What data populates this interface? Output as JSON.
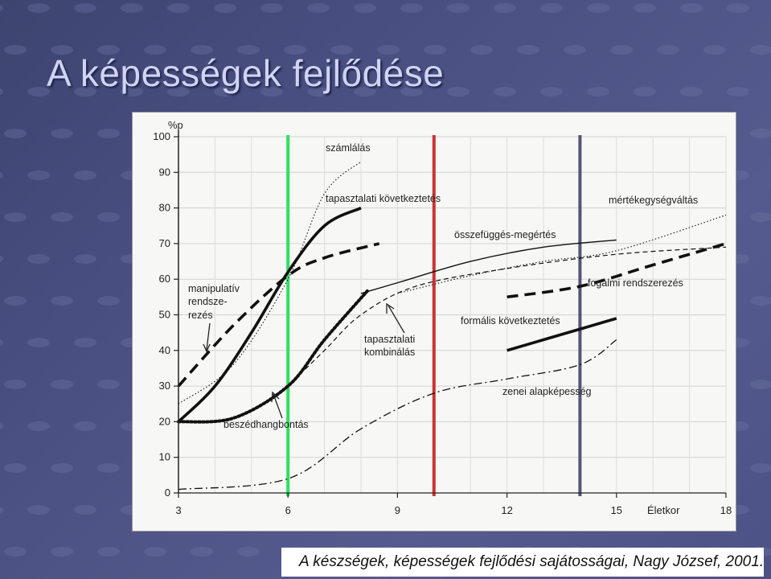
{
  "slide": {
    "title": "A képességek fejlődése",
    "caption": "A készségek, képességek fejlődési sajátosságai, Nagy József, 2001.",
    "background_color": "#4a5082",
    "title_color": "#cfd4f5"
  },
  "chart_data": {
    "type": "line",
    "title": "",
    "xlabel": "Életkor",
    "ylabel": "%p",
    "xlim": [
      3,
      18
    ],
    "ylim": [
      0,
      100
    ],
    "x_ticks": [
      3,
      6,
      9,
      12,
      15,
      18
    ],
    "y_ticks": [
      0,
      10,
      20,
      30,
      40,
      50,
      60,
      70,
      80,
      90,
      100
    ],
    "grid": true,
    "series": [
      {
        "name": "számlálás",
        "style": "dotted-thin",
        "points": [
          [
            3,
            25
          ],
          [
            4.5,
            36
          ],
          [
            6,
            60
          ],
          [
            7,
            84
          ],
          [
            8,
            93
          ]
        ]
      },
      {
        "name": "tapasztalati következtetés",
        "style": "solid-thick",
        "points": [
          [
            3,
            20
          ],
          [
            4,
            30
          ],
          [
            5,
            45
          ],
          [
            6,
            62
          ],
          [
            7,
            75
          ],
          [
            8,
            80
          ]
        ]
      },
      {
        "name": "manipulatív rendszerezés",
        "style": "dashed-thick",
        "points": [
          [
            3,
            30
          ],
          [
            4.5,
            47
          ],
          [
            6,
            61
          ],
          [
            7,
            66
          ],
          [
            8.5,
            70
          ]
        ]
      },
      {
        "name": "beszédhangbontás",
        "style": "dotted-thick",
        "points": [
          [
            3,
            20
          ],
          [
            4.5,
            21
          ],
          [
            6,
            30
          ],
          [
            7,
            43
          ],
          [
            8.2,
            57
          ]
        ]
      },
      {
        "name": "összefüggés-megértés",
        "style": "solid-thin",
        "points": [
          [
            8,
            56
          ],
          [
            9,
            59
          ],
          [
            11,
            65
          ],
          [
            13,
            69
          ],
          [
            15,
            71
          ]
        ]
      },
      {
        "name": "tapasztalati kombinálás",
        "style": "dashed-thin",
        "points": [
          [
            6,
            30
          ],
          [
            7,
            40
          ],
          [
            8,
            50
          ],
          [
            9.5,
            58
          ],
          [
            12,
            63
          ],
          [
            15,
            67
          ],
          [
            18,
            69
          ]
        ]
      },
      {
        "name": "mértékegységváltás",
        "style": "dotted-thin",
        "points": [
          [
            9,
            56
          ],
          [
            11,
            61
          ],
          [
            13,
            65
          ],
          [
            15,
            68
          ],
          [
            18,
            78
          ]
        ]
      },
      {
        "name": "fogalmi rendszerezés",
        "style": "dashed-thick",
        "points": [
          [
            12,
            55
          ],
          [
            14,
            58
          ],
          [
            16,
            64
          ],
          [
            18,
            70
          ]
        ]
      },
      {
        "name": "formális következtetés",
        "style": "solid-thick",
        "points": [
          [
            12,
            40
          ],
          [
            13,
            43
          ],
          [
            14,
            46
          ],
          [
            15,
            49
          ]
        ]
      },
      {
        "name": "zenei alapképesség",
        "style": "dashdot-thin",
        "points": [
          [
            3,
            1
          ],
          [
            6,
            4
          ],
          [
            8,
            18
          ],
          [
            10,
            28
          ],
          [
            12,
            32
          ],
          [
            14,
            36
          ],
          [
            15,
            43
          ]
        ]
      }
    ],
    "vertical_lines": [
      {
        "x": 6,
        "color": "#2fe060"
      },
      {
        "x": 10,
        "color": "#cc3333"
      },
      {
        "x": 14,
        "color": "#555577"
      }
    ],
    "annotations": {
      "szamlalas": "számlálás",
      "tapasztalati_kovetkeztetes": "tapasztalati következtetés",
      "mertekegysegvaltas": "mértékegységváltás",
      "osszefugges": "összefüggés-megértés",
      "fogalmi": "fogalmi rendszerezés",
      "manipulativ": "manipulatív",
      "rendsze": "rendsze-",
      "rezes": "rezés",
      "formalis": "formális következtetés",
      "tap_kombinalas_1": "tapasztalati",
      "tap_kombinalas_2": "kombinálás",
      "zenei": "zenei alapképesség",
      "beszedhang": "beszédhangbontás"
    }
  }
}
